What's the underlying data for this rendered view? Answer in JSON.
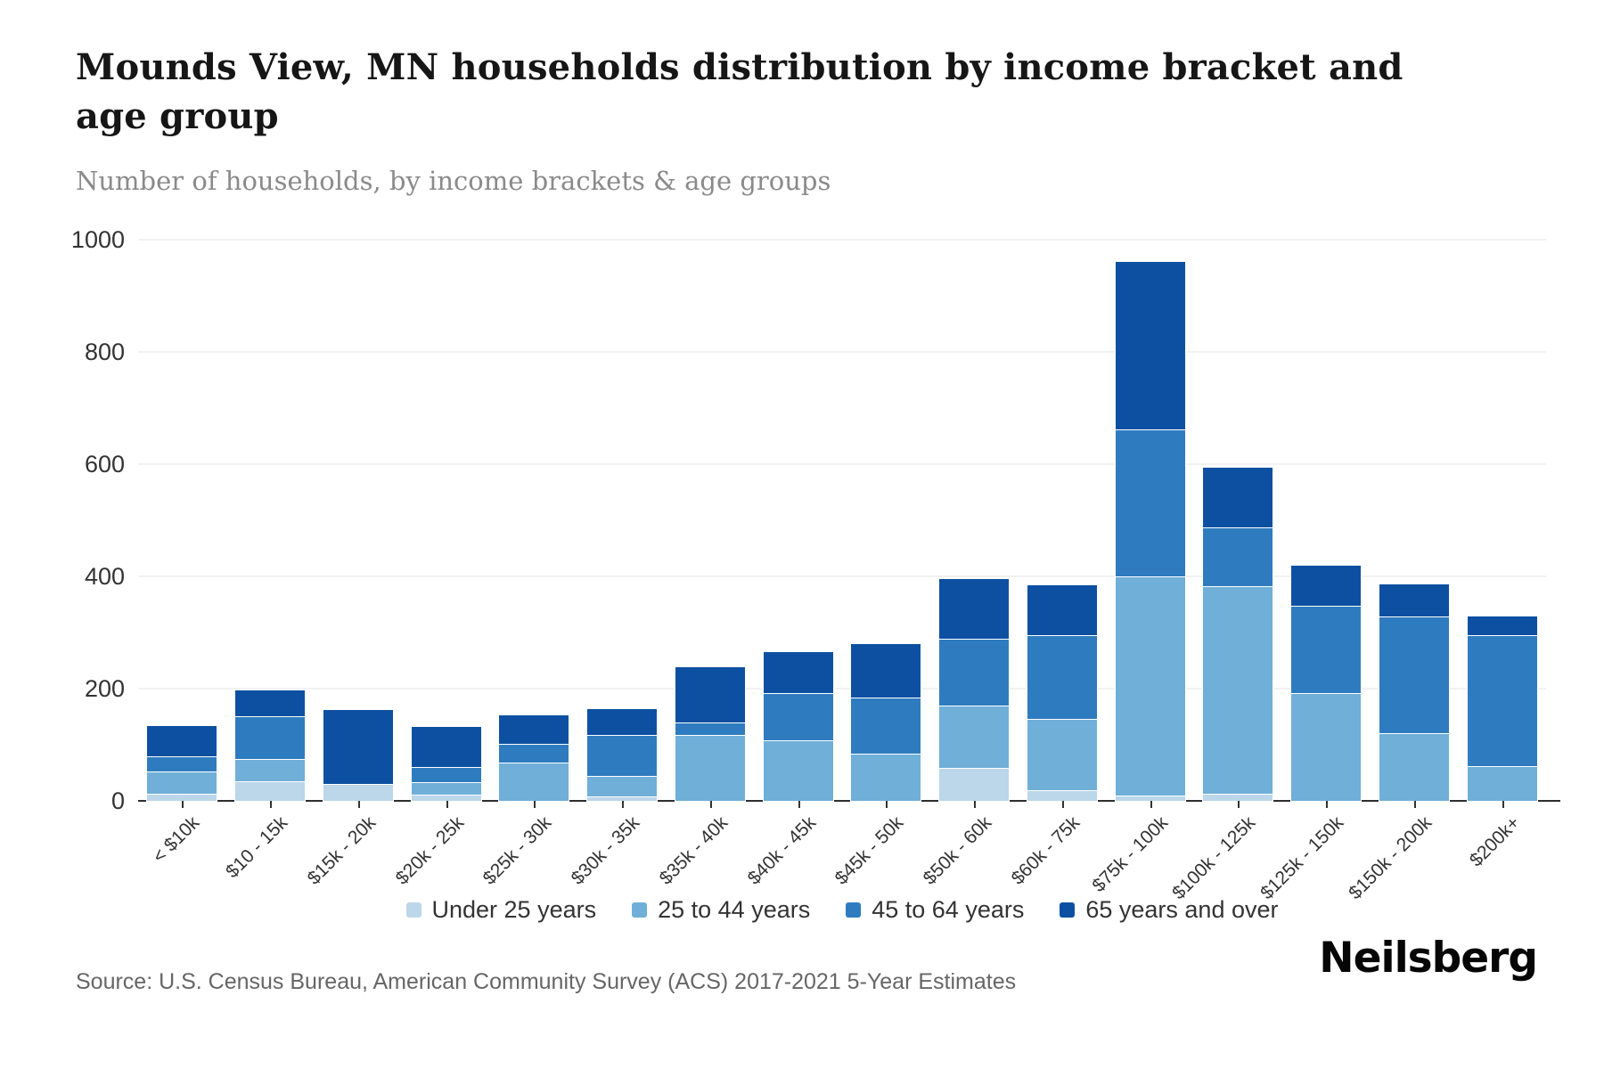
{
  "chart_data": {
    "type": "bar",
    "stacked": true,
    "title": "Mounds View, MN households distribution by income bracket and age group",
    "subtitle": "Number of households, by income brackets & age groups",
    "categories": [
      "< $10k",
      "$10 - 15k",
      "$15k - 20k",
      "$20k - 25k",
      "$25k - 30k",
      "$30k - 35k",
      "$35k - 40k",
      "$40k - 45k",
      "$45k - 50k",
      "$50k - 60k",
      "$60k - 75k",
      "$75k - 100k",
      "$100k - 125k",
      "$125k - 150k",
      "$150k - 200k",
      "$200k+"
    ],
    "series": [
      {
        "name": "Under 25 years",
        "color": "#bcd6ea",
        "values": [
          13,
          35,
          30,
          11,
          0,
          8,
          0,
          0,
          0,
          59,
          19,
          10,
          12,
          0,
          0,
          0
        ]
      },
      {
        "name": "25 to 44 years",
        "color": "#6fafd8",
        "values": [
          40,
          40,
          0,
          23,
          68,
          36,
          118,
          108,
          84,
          111,
          127,
          390,
          370,
          192,
          121,
          62
        ]
      },
      {
        "name": "45 to 64 years",
        "color": "#2e7cbf",
        "values": [
          27,
          76,
          0,
          26,
          34,
          74,
          22,
          84,
          100,
          119,
          149,
          262,
          105,
          155,
          208,
          233
        ]
      },
      {
        "name": "65 years and over",
        "color": "#0d50a1",
        "values": [
          54,
          46,
          132,
          71,
          50,
          45,
          98,
          73,
          95,
          106,
          89,
          298,
          107,
          72,
          56,
          33
        ]
      }
    ],
    "totals": [
      134,
      197,
      162,
      131,
      152,
      163,
      238,
      265,
      279,
      395,
      384,
      960,
      594,
      419,
      385,
      328
    ],
    "ylim": [
      0,
      1000
    ],
    "yticks": [
      0,
      200,
      400,
      600,
      800,
      1000
    ],
    "grid": true,
    "legend_position": "bottom-center",
    "xlabel_rotation": -45
  },
  "footer": {
    "source": "Source: U.S. Census Bureau, American Community Survey (ACS) 2017-2021 5-Year Estimates",
    "brand": "Neilsberg"
  },
  "colors": {
    "axis_line": "#2e2e2e",
    "grid_line": "#f2f2f2",
    "tick_text": "#333333",
    "subtitle_text": "#8a8a8a",
    "source_text": "#666666"
  }
}
